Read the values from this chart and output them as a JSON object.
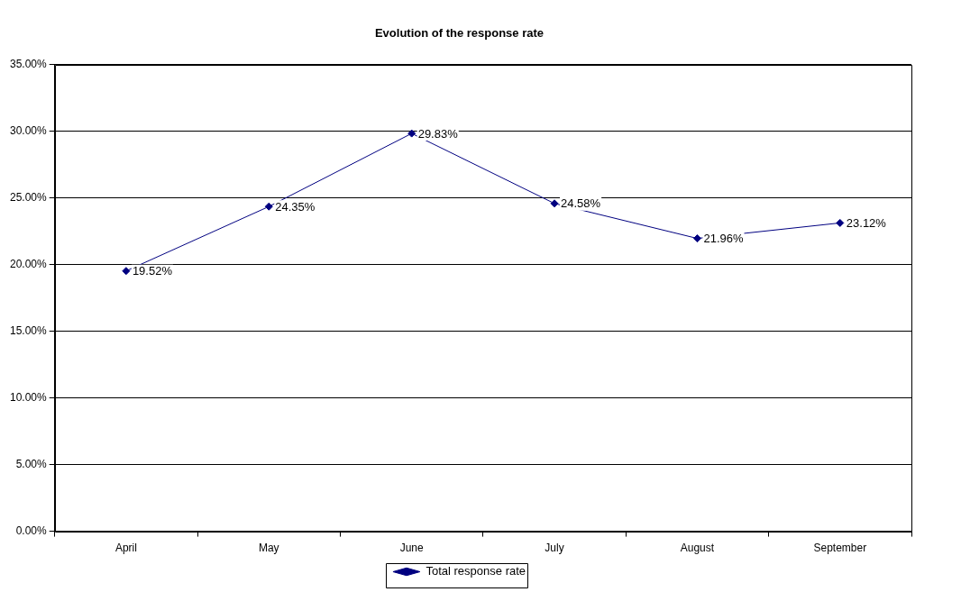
{
  "chart_data": {
    "type": "line",
    "title": "Evolution of the response rate",
    "categories": [
      "April",
      "May",
      "June",
      "July",
      "August",
      "September"
    ],
    "series": [
      {
        "name": "Total response rate",
        "color": "#000080",
        "values": [
          19.52,
          24.35,
          29.83,
          24.58,
          21.96,
          23.12
        ],
        "value_labels": [
          "19.52%",
          "24.35%",
          "29.83%",
          "24.58%",
          "21.96%",
          "23.12%"
        ]
      }
    ],
    "ylim": [
      0,
      35
    ],
    "yticks": [
      {
        "value": 0,
        "label": "0.00%"
      },
      {
        "value": 5,
        "label": "5.00%"
      },
      {
        "value": 10,
        "label": "10.00%"
      },
      {
        "value": 15,
        "label": "15.00%"
      },
      {
        "value": 20,
        "label": "20.00%"
      },
      {
        "value": 25,
        "label": "25.00%"
      },
      {
        "value": 30,
        "label": "30.00%"
      },
      {
        "value": 35,
        "label": "35.00%"
      }
    ],
    "grid": "y",
    "legend": "bottom",
    "marker": "diamond",
    "line_style": "solid"
  }
}
